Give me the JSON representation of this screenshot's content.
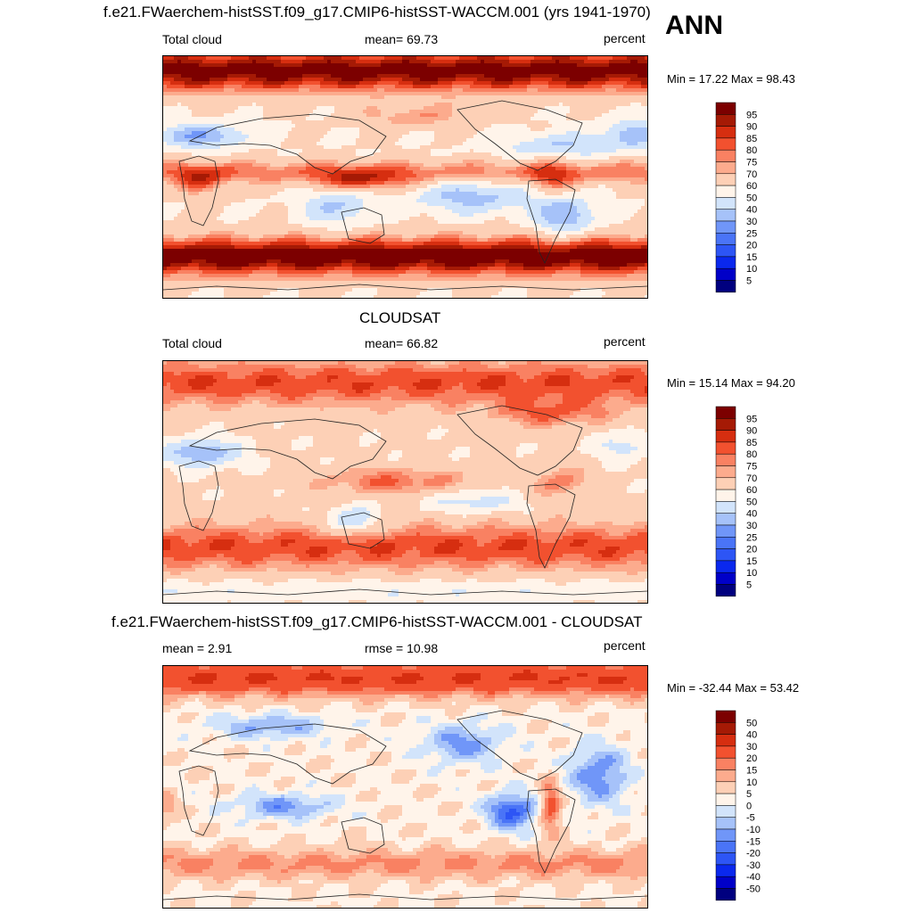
{
  "season": "ANN",
  "panels": [
    {
      "title": "f.e21.FWaerchem-histSST.f09_g17.CMIP6-histSST-WACCM.001 (yrs 1941-1970)",
      "left_label": "Total cloud",
      "center_label": "mean=  69.73",
      "units": "percent",
      "minmax": "Min =  17.22 Max =  98.43"
    },
    {
      "title": "CLOUDSAT",
      "left_label": "Total cloud",
      "center_label": "mean=  66.82",
      "units": "percent",
      "minmax": "Min =  15.14 Max =  94.20"
    },
    {
      "title": "f.e21.FWaerchem-histSST.f09_g17.CMIP6-histSST-WACCM.001 - CLOUDSAT",
      "left_label": "mean =   2.91",
      "center_label": "rmse =  10.98",
      "units": "percent",
      "minmax": "Min = -32.44 Max =  53.42"
    }
  ],
  "chart_data": [
    {
      "type": "heatmap",
      "title": "f.e21.FWaerchem-histSST.f09_g17.CMIP6-histSST-WACCM.001 (yrs 1941-1970)",
      "variable": "Total cloud",
      "units": "percent",
      "mean": 69.73,
      "min": 17.22,
      "max": 98.43,
      "colorbar_levels": [
        5,
        10,
        15,
        20,
        25,
        30,
        40,
        50,
        60,
        70,
        75,
        80,
        85,
        90,
        95
      ],
      "colorbar_labels": [
        "95",
        "90",
        "85",
        "80",
        "75",
        "70",
        "60",
        "50",
        "40",
        "30",
        "25",
        "20",
        "15",
        "10",
        "5"
      ],
      "colors": [
        "#00007f",
        "#0000c8",
        "#0a28ee",
        "#2d55f5",
        "#4a74f7",
        "#7096f8",
        "#a6c2f9",
        "#d2e4fb",
        "#fff4ea",
        "#fdd0b6",
        "#fcab8d",
        "#f98162",
        "#f2512f",
        "#d62e10",
        "#a51a05",
        "#7c0000"
      ]
    },
    {
      "type": "heatmap",
      "title": "CLOUDSAT",
      "variable": "Total cloud",
      "units": "percent",
      "mean": 66.82,
      "min": 15.14,
      "max": 94.2,
      "colorbar_levels": [
        5,
        10,
        15,
        20,
        25,
        30,
        40,
        50,
        60,
        70,
        75,
        80,
        85,
        90,
        95
      ],
      "colorbar_labels": [
        "95",
        "90",
        "85",
        "80",
        "75",
        "70",
        "60",
        "50",
        "40",
        "30",
        "25",
        "20",
        "15",
        "10",
        "5"
      ],
      "colors": [
        "#00007f",
        "#0000c8",
        "#0a28ee",
        "#2d55f5",
        "#4a74f7",
        "#7096f8",
        "#a6c2f9",
        "#d2e4fb",
        "#fff4ea",
        "#fdd0b6",
        "#fcab8d",
        "#f98162",
        "#f2512f",
        "#d62e10",
        "#a51a05",
        "#7c0000"
      ]
    },
    {
      "type": "heatmap",
      "title": "f.e21.FWaerchem-histSST.f09_g17.CMIP6-histSST-WACCM.001 - CLOUDSAT",
      "variable": "difference",
      "units": "percent",
      "mean": 2.91,
      "rmse": 10.98,
      "min": -32.44,
      "max": 53.42,
      "colorbar_levels": [
        -50,
        -40,
        -30,
        -20,
        -15,
        -10,
        -5,
        0,
        5,
        10,
        15,
        20,
        30,
        40,
        50
      ],
      "colorbar_labels": [
        "50",
        "40",
        "30",
        "20",
        "15",
        "10",
        "5",
        "0",
        "-5",
        "-10",
        "-15",
        "-20",
        "-30",
        "-40",
        "-50"
      ],
      "colors": [
        "#00007f",
        "#0000c8",
        "#0a28ee",
        "#2d55f5",
        "#4a74f7",
        "#7096f8",
        "#a6c2f9",
        "#d2e4fb",
        "#fff4ea",
        "#fdd0b6",
        "#fcab8d",
        "#f98162",
        "#f2512f",
        "#d62e10",
        "#a51a05",
        "#7c0000"
      ]
    }
  ]
}
